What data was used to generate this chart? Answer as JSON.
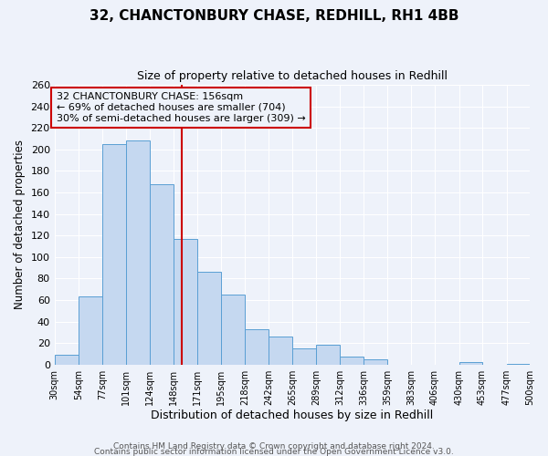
{
  "title": "32, CHANCTONBURY CHASE, REDHILL, RH1 4BB",
  "subtitle": "Size of property relative to detached houses in Redhill",
  "xlabel": "Distribution of detached houses by size in Redhill",
  "ylabel": "Number of detached properties",
  "footer_lines": [
    "Contains HM Land Registry data © Crown copyright and database right 2024.",
    "Contains public sector information licensed under the Open Government Licence v3.0."
  ],
  "bin_edges": [
    30,
    54,
    77,
    101,
    124,
    148,
    171,
    195,
    218,
    242,
    265,
    289,
    312,
    336,
    359,
    383,
    406,
    430,
    453,
    477,
    500
  ],
  "bin_counts": [
    9,
    63,
    205,
    208,
    168,
    117,
    86,
    65,
    33,
    26,
    15,
    18,
    7,
    5,
    0,
    0,
    0,
    2,
    0,
    1
  ],
  "bar_color": "#c5d8f0",
  "bar_edge_color": "#5a9fd4",
  "vline_color": "#cc0000",
  "vline_x": 156,
  "annotation_line1": "32 CHANCTONBURY CHASE: 156sqm",
  "annotation_line2": "← 69% of detached houses are smaller (704)",
  "annotation_line3": "30% of semi-detached houses are larger (309) →",
  "ylim": [
    0,
    260
  ],
  "yticks": [
    0,
    20,
    40,
    60,
    80,
    100,
    120,
    140,
    160,
    180,
    200,
    220,
    240,
    260
  ],
  "bg_color": "#eef2fa",
  "grid_color": "#ffffff",
  "tick_labels": [
    "30sqm",
    "54sqm",
    "77sqm",
    "101sqm",
    "124sqm",
    "148sqm",
    "171sqm",
    "195sqm",
    "218sqm",
    "242sqm",
    "265sqm",
    "289sqm",
    "312sqm",
    "336sqm",
    "359sqm",
    "383sqm",
    "406sqm",
    "430sqm",
    "453sqm",
    "477sqm",
    "500sqm"
  ],
  "title_fontsize": 11,
  "subtitle_fontsize": 9,
  "ylabel_fontsize": 8.5,
  "xlabel_fontsize": 9,
  "ytick_fontsize": 8,
  "xtick_fontsize": 7,
  "annotation_fontsize": 8,
  "footer_fontsize": 6.5
}
